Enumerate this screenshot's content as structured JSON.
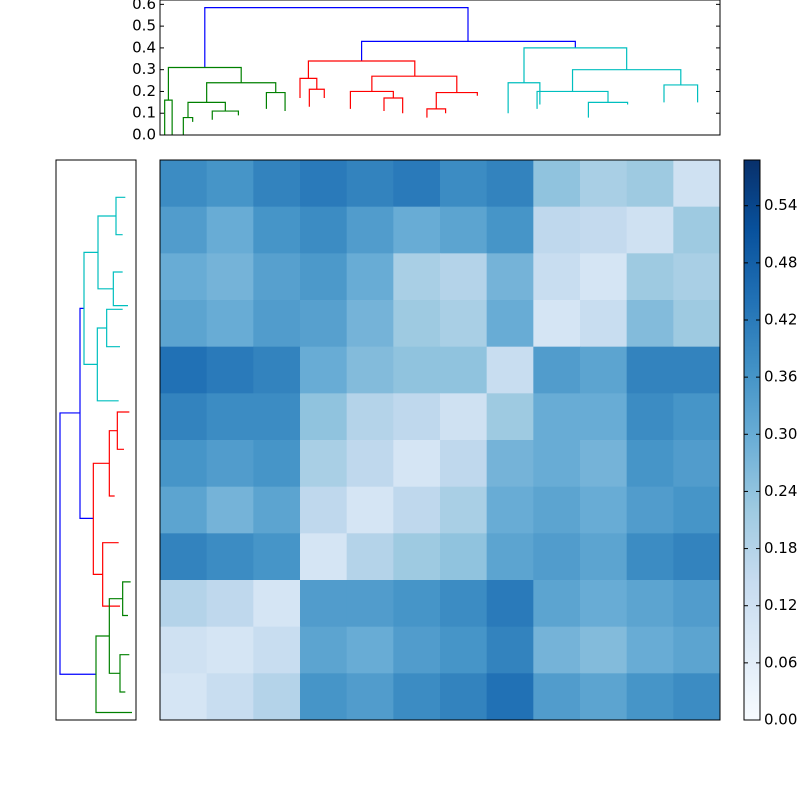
{
  "chart_data": [
    {
      "type": "dendrogram",
      "orientation": "top",
      "xlim": [
        0,
        600
      ],
      "ylim": [
        0,
        0.62
      ],
      "yticks": [
        {
          "value": 0,
          "label": "0.0"
        },
        0.1,
        0.2,
        0.3,
        0.4,
        0.5,
        0.6
      ],
      "links": [
        {
          "x": [
            48,
            330
          ],
          "h": [
            0.31,
            0.585,
            0.43
          ],
          "color": "#0000ff"
        },
        {
          "x": [
            216,
            445
          ],
          "h": [
            0.34,
            0.43,
            0.4
          ],
          "color": "#0000ff"
        },
        {
          "x": [
            9,
            87
          ],
          "h": [
            0.16,
            0.31,
            0.24
          ],
          "color": "#008000"
        },
        {
          "x": [
            50,
            124
          ],
          "h": [
            0.15,
            0.24,
            0.195
          ],
          "color": "#008000"
        },
        {
          "x": [
            5,
            13
          ],
          "h": [
            0,
            0.16,
            0
          ],
          "color": "#008000"
        },
        {
          "x": [
            30,
            70
          ],
          "h": [
            0.08,
            0.15,
            0.11
          ],
          "color": "#008000"
        },
        {
          "x": [
            114,
            134
          ],
          "h": [
            0.12,
            0.195,
            0.11
          ],
          "color": "#008000"
        },
        {
          "x": [
            25,
            35
          ],
          "h": [
            0,
            0.08,
            0.06
          ],
          "color": "#008000"
        },
        {
          "x": [
            56,
            84
          ],
          "h": [
            0.07,
            0.11,
            0.09
          ],
          "color": "#008000"
        },
        {
          "x": [
            159,
            273
          ],
          "h": [
            0.26,
            0.34,
            0.27
          ],
          "color": "#ff0000"
        },
        {
          "x": [
            150,
            168
          ],
          "h": [
            0.17,
            0.26,
            0.21
          ],
          "color": "#ff0000"
        },
        {
          "x": [
            227,
            318
          ],
          "h": [
            0.2,
            0.27,
            0.195
          ],
          "color": "#ff0000"
        },
        {
          "x": [
            160,
            176
          ],
          "h": [
            0.13,
            0.21,
            0.17
          ],
          "color": "#ff0000"
        },
        {
          "x": [
            204,
            250
          ],
          "h": [
            0.12,
            0.2,
            0.17
          ],
          "color": "#ff0000"
        },
        {
          "x": [
            296,
            340
          ],
          "h": [
            0.12,
            0.195,
            0.18
          ],
          "color": "#ff0000"
        },
        {
          "x": [
            240,
            260
          ],
          "h": [
            0.11,
            0.17,
            0.1
          ],
          "color": "#ff0000"
        },
        {
          "x": [
            286,
            306
          ],
          "h": [
            0.08,
            0.12,
            0.1
          ],
          "color": "#ff0000"
        },
        {
          "x": [
            390,
            500
          ],
          "h": [
            0.24,
            0.4,
            0.3
          ],
          "color": "#00bfbf"
        },
        {
          "x": [
            373,
            407
          ],
          "h": [
            0.1,
            0.24,
            0.14
          ],
          "color": "#00bfbf"
        },
        {
          "x": [
            442,
            558
          ],
          "h": [
            0.2,
            0.3,
            0.23
          ],
          "color": "#00bfbf"
        },
        {
          "x": [
            404,
            480
          ],
          "h": [
            0.12,
            0.2,
            0.15
          ],
          "color": "#00bfbf"
        },
        {
          "x": [
            540,
            576
          ],
          "h": [
            0.15,
            0.23,
            0.15
          ],
          "color": "#00bfbf"
        },
        {
          "x": [
            459,
            501
          ],
          "h": [
            0.08,
            0.15,
            0.14
          ],
          "color": "#00bfbf"
        }
      ]
    },
    {
      "type": "dendrogram",
      "orientation": "left",
      "xlim": [
        0.6,
        0
      ],
      "ylim": [
        600,
        0
      ],
      "links": [
        {
          "x": [
            271,
            551
          ],
          "h": [
            0.42,
            0.57,
            0.3
          ],
          "color": "#0000ff"
        },
        {
          "x": [
            159,
            384
          ],
          "h": [
            0.39,
            0.42,
            0.32
          ],
          "color": "#0000ff"
        },
        {
          "x": [
            99,
            219
          ],
          "h": [
            0.285,
            0.39,
            0.29
          ],
          "color": "#00bfbf"
        },
        {
          "x": [
            60,
            138
          ],
          "h": [
            0.15,
            0.285,
            0.17
          ],
          "color": "#00bfbf"
        },
        {
          "x": [
            180,
            258
          ],
          "h": [
            0.22,
            0.29,
            0.13
          ],
          "color": "#00bfbf"
        },
        {
          "x": [
            40,
            80
          ],
          "h": [
            0.08,
            0.15,
            0.1
          ],
          "color": "#00bfbf"
        },
        {
          "x": [
            120,
            156
          ],
          "h": [
            0.1,
            0.17,
            0.06
          ],
          "color": "#00bfbf"
        },
        {
          "x": [
            160,
            200
          ],
          "h": [
            0.1,
            0.22,
            0.12
          ],
          "color": "#00bfbf"
        },
        {
          "x": [
            325,
            444
          ],
          "h": [
            0.2,
            0.32,
            0.25
          ],
          "color": "#ff0000"
        },
        {
          "x": [
            290,
            360
          ],
          "h": [
            0.14,
            0.2,
            0.16
          ],
          "color": "#ff0000"
        },
        {
          "x": [
            410,
            478
          ],
          "h": [
            0.13,
            0.25,
            0.12
          ],
          "color": "#ff0000"
        },
        {
          "x": [
            270,
            310
          ],
          "h": [
            0.05,
            0.14,
            0.09
          ],
          "color": "#ff0000"
        },
        {
          "x": [
            510,
            592
          ],
          "h": [
            0.2,
            0.3,
            0.03
          ],
          "color": "#008000"
        },
        {
          "x": [
            470,
            550
          ],
          "h": [
            0.1,
            0.2,
            0.12
          ],
          "color": "#008000"
        },
        {
          "x": [
            452,
            488
          ],
          "h": [
            0.04,
            0.1,
            0.06
          ],
          "color": "#008000"
        },
        {
          "x": [
            530,
            570
          ],
          "h": [
            0.05,
            0.12,
            0.08
          ],
          "color": "#008000"
        }
      ]
    },
    {
      "type": "heatmap",
      "colormap": "Blues",
      "clim": [
        0,
        0.588
      ],
      "colorbar_ticks": [
        {
          "value": 0,
          "label": "0.00"
        },
        0.06,
        0.12,
        0.18,
        0.24,
        {
          "value": 0.3,
          "label": "0.30"
        },
        0.36,
        0.42,
        0.48,
        0.54
      ],
      "values": [
        [
          0.38,
          0.36,
          0.4,
          0.42,
          0.4,
          0.42,
          0.38,
          0.4,
          0.24,
          0.2,
          0.22,
          0.12
        ],
        [
          0.34,
          0.3,
          0.36,
          0.38,
          0.34,
          0.3,
          0.32,
          0.36,
          0.16,
          0.15,
          0.12,
          0.22
        ],
        [
          0.3,
          0.28,
          0.33,
          0.35,
          0.3,
          0.2,
          0.18,
          0.28,
          0.14,
          0.1,
          0.22,
          0.2
        ],
        [
          0.32,
          0.3,
          0.34,
          0.33,
          0.28,
          0.22,
          0.2,
          0.3,
          0.1,
          0.14,
          0.26,
          0.22
        ],
        [
          0.44,
          0.42,
          0.4,
          0.3,
          0.26,
          0.24,
          0.24,
          0.14,
          0.34,
          0.32,
          0.4,
          0.4
        ],
        [
          0.4,
          0.38,
          0.38,
          0.24,
          0.18,
          0.16,
          0.12,
          0.22,
          0.3,
          0.3,
          0.38,
          0.36
        ],
        [
          0.36,
          0.34,
          0.36,
          0.2,
          0.16,
          0.1,
          0.16,
          0.28,
          0.3,
          0.28,
          0.36,
          0.34
        ],
        [
          0.32,
          0.28,
          0.32,
          0.16,
          0.1,
          0.16,
          0.2,
          0.3,
          0.32,
          0.3,
          0.34,
          0.36
        ],
        [
          0.4,
          0.38,
          0.36,
          0.1,
          0.18,
          0.22,
          0.24,
          0.32,
          0.34,
          0.32,
          0.38,
          0.4
        ],
        [
          0.18,
          0.16,
          0.1,
          0.34,
          0.34,
          0.36,
          0.38,
          0.42,
          0.32,
          0.3,
          0.32,
          0.34
        ],
        [
          0.12,
          0.1,
          0.14,
          0.32,
          0.3,
          0.34,
          0.36,
          0.4,
          0.28,
          0.26,
          0.3,
          0.32
        ],
        [
          0.1,
          0.14,
          0.18,
          0.36,
          0.34,
          0.38,
          0.4,
          0.44,
          0.34,
          0.32,
          0.36,
          0.38
        ]
      ]
    }
  ]
}
